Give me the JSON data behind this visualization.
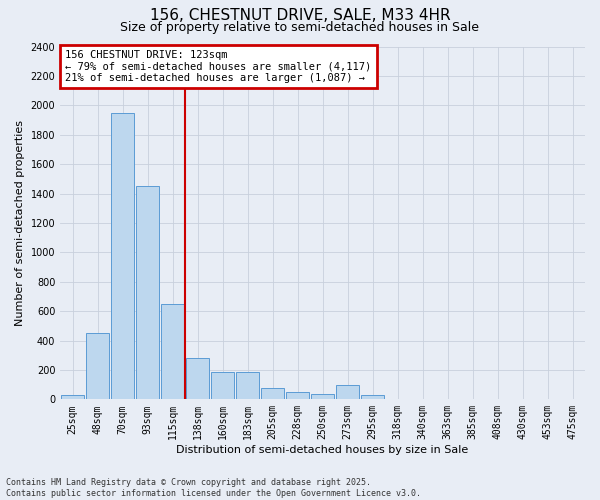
{
  "title": "156, CHESTNUT DRIVE, SALE, M33 4HR",
  "subtitle": "Size of property relative to semi-detached houses in Sale",
  "xlabel": "Distribution of semi-detached houses by size in Sale",
  "ylabel": "Number of semi-detached properties",
  "categories": [
    "25sqm",
    "48sqm",
    "70sqm",
    "93sqm",
    "115sqm",
    "138sqm",
    "160sqm",
    "183sqm",
    "205sqm",
    "228sqm",
    "250sqm",
    "273sqm",
    "295sqm",
    "318sqm",
    "340sqm",
    "363sqm",
    "385sqm",
    "408sqm",
    "430sqm",
    "453sqm",
    "475sqm"
  ],
  "values": [
    30,
    450,
    1950,
    1450,
    650,
    280,
    185,
    185,
    75,
    50,
    35,
    100,
    30,
    5,
    5,
    0,
    0,
    0,
    0,
    0,
    0
  ],
  "bar_color": "#bdd7ee",
  "bar_edge_color": "#5b9bd5",
  "property_label": "156 CHESTNUT DRIVE: 123sqm",
  "pct_smaller": 79,
  "n_smaller": 4117,
  "pct_larger": 21,
  "n_larger": 1087,
  "vline_x": 4.5,
  "vline_color": "#cc0000",
  "annotation_box_color": "#cc0000",
  "grid_color": "#c8d0dc",
  "background_color": "#e8edf5",
  "ylim": [
    0,
    2400
  ],
  "yticks": [
    0,
    200,
    400,
    600,
    800,
    1000,
    1200,
    1400,
    1600,
    1800,
    2000,
    2200,
    2400
  ],
  "footnote": "Contains HM Land Registry data © Crown copyright and database right 2025.\nContains public sector information licensed under the Open Government Licence v3.0.",
  "title_fontsize": 11,
  "subtitle_fontsize": 9,
  "xlabel_fontsize": 8,
  "ylabel_fontsize": 8,
  "tick_fontsize": 7,
  "annotation_fontsize": 7.5,
  "footnote_fontsize": 6
}
